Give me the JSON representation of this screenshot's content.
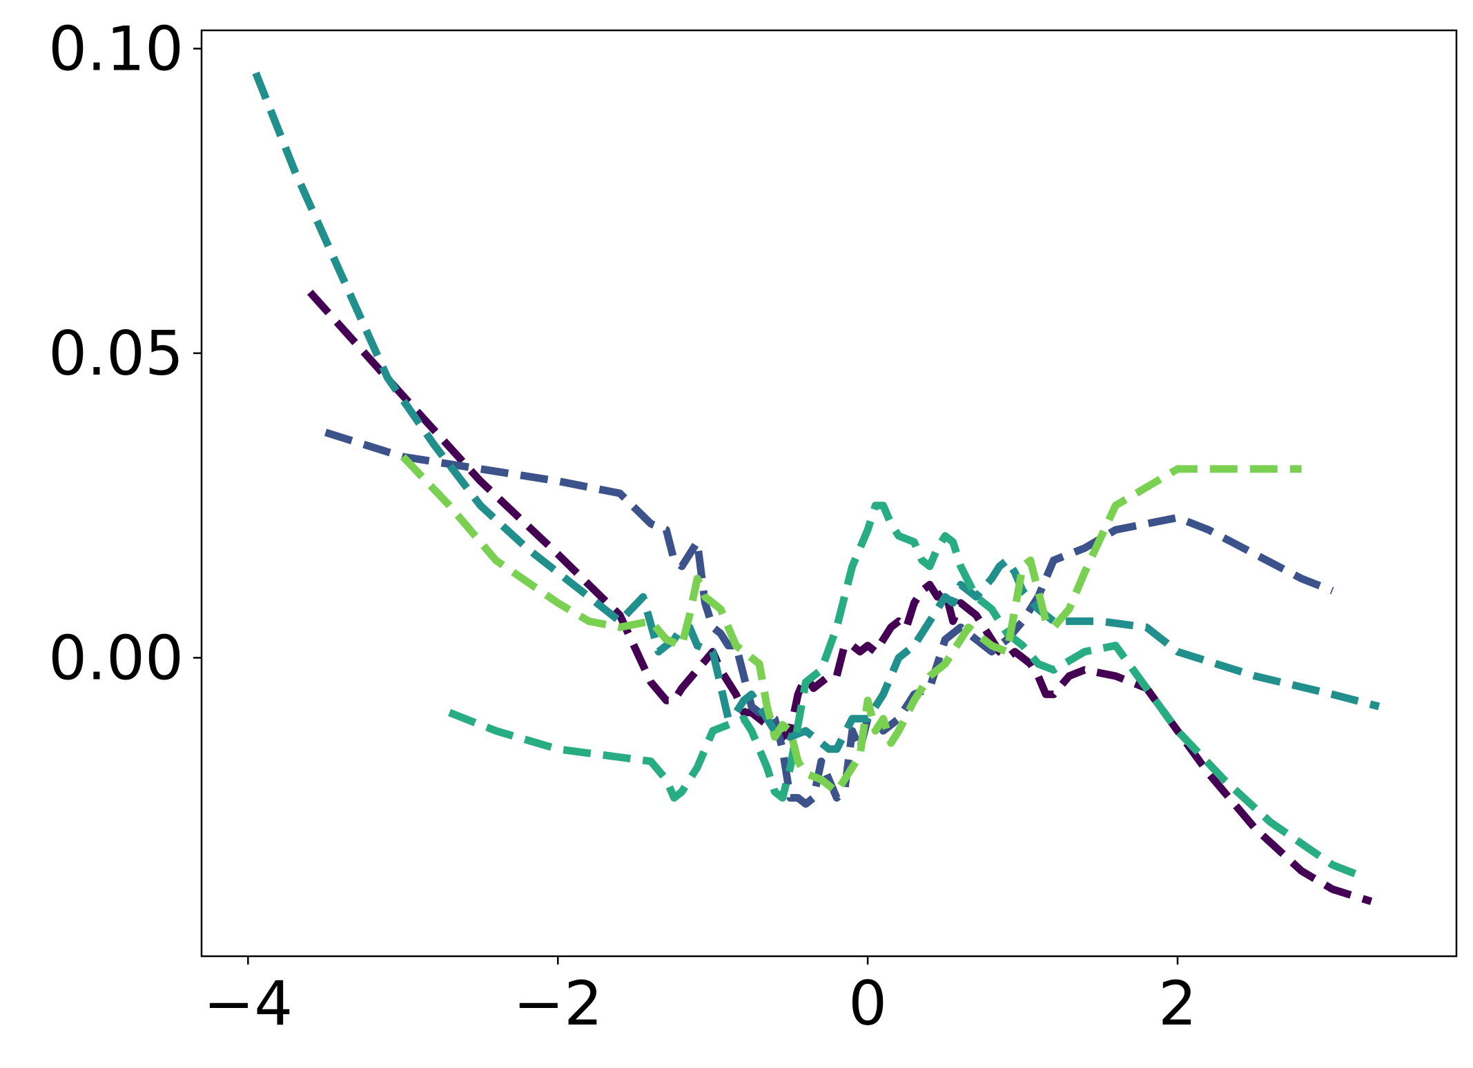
{
  "chart_data": {
    "type": "line",
    "title": "",
    "xlabel": "",
    "ylabel": "",
    "xlim": [
      -4.3,
      3.8
    ],
    "ylim": [
      -0.049,
      0.103
    ],
    "x_ticks": [
      -4,
      -2,
      0,
      2
    ],
    "y_ticks": [
      0.0,
      0.05,
      0.1
    ],
    "x_tick_labels": [
      "−4",
      "−2",
      "0",
      "2"
    ],
    "y_tick_labels": [
      "0.00",
      "0.05",
      "0.10"
    ],
    "grid": false,
    "legend": "none",
    "line_style": "dashed",
    "series": [
      {
        "color": "#440154",
        "x": [
          -3.6,
          -3.0,
          -2.5,
          -2.0,
          -1.6,
          -1.4,
          -1.3,
          -1.25,
          -1.2,
          -1.1,
          -1.0,
          -0.95,
          -0.9,
          -0.85,
          -0.8,
          -0.75,
          -0.7,
          -0.65,
          -0.6,
          -0.55,
          -0.5,
          -0.45,
          -0.4,
          -0.35,
          -0.3,
          -0.25,
          -0.2,
          -0.15,
          -0.1,
          -0.05,
          0.0,
          0.05,
          0.1,
          0.15,
          0.2,
          0.25,
          0.3,
          0.35,
          0.4,
          0.45,
          0.5,
          0.55,
          0.6,
          0.65,
          0.7,
          0.75,
          0.8,
          0.85,
          0.9,
          0.95,
          1.0,
          1.05,
          1.1,
          1.15,
          1.2,
          1.3,
          1.4,
          1.6,
          1.8,
          2.0,
          2.2,
          2.5,
          2.8,
          3.0,
          3.25
        ],
        "values": [
          0.06,
          0.043,
          0.029,
          0.017,
          0.007,
          -0.004,
          -0.007,
          -0.007,
          -0.005,
          -0.002,
          0.001,
          -0.002,
          -0.004,
          -0.006,
          -0.009,
          -0.009,
          -0.01,
          -0.011,
          -0.012,
          -0.013,
          -0.012,
          -0.006,
          -0.003,
          -0.005,
          -0.004,
          -0.003,
          -0.003,
          0.002,
          0.002,
          0.001,
          0.002,
          0.001,
          0.003,
          0.005,
          0.006,
          0.005,
          0.009,
          0.011,
          0.012,
          0.01,
          0.011,
          0.006,
          0.009,
          0.008,
          0.007,
          0.005,
          0.003,
          0.001,
          0.0,
          0.001,
          0.0,
          -0.001,
          -0.003,
          -0.006,
          -0.006,
          -0.003,
          -0.002,
          -0.003,
          -0.005,
          -0.012,
          -0.019,
          -0.028,
          -0.035,
          -0.038,
          -0.04
        ]
      },
      {
        "color": "#3b528b",
        "x": [
          -3.5,
          -3.0,
          -2.5,
          -2.0,
          -1.8,
          -1.6,
          -1.4,
          -1.3,
          -1.25,
          -1.2,
          -1.15,
          -1.1,
          -1.05,
          -1.0,
          -0.95,
          -0.9,
          -0.85,
          -0.8,
          -0.75,
          -0.7,
          -0.65,
          -0.6,
          -0.55,
          -0.5,
          -0.45,
          -0.4,
          -0.35,
          -0.3,
          -0.25,
          -0.2,
          -0.15,
          -0.1,
          -0.05,
          0.0,
          0.05,
          0.1,
          0.15,
          0.2,
          0.3,
          0.4,
          0.5,
          0.6,
          0.7,
          0.8,
          0.9,
          1.0,
          1.1,
          1.2,
          1.4,
          1.6,
          1.8,
          2.0,
          2.2,
          2.5,
          2.8,
          3.0
        ],
        "values": [
          0.037,
          0.033,
          0.031,
          0.029,
          0.028,
          0.027,
          0.022,
          0.021,
          0.016,
          0.015,
          0.017,
          0.019,
          0.009,
          0.005,
          0.004,
          0.002,
          0.002,
          -0.003,
          -0.008,
          -0.009,
          -0.009,
          -0.01,
          -0.015,
          -0.023,
          -0.023,
          -0.024,
          -0.023,
          -0.017,
          -0.02,
          -0.023,
          -0.022,
          -0.012,
          -0.015,
          -0.01,
          -0.01,
          -0.012,
          -0.011,
          -0.01,
          -0.006,
          -0.005,
          0.003,
          0.005,
          0.003,
          0.001,
          0.003,
          0.006,
          0.01,
          0.016,
          0.018,
          0.021,
          0.022,
          0.023,
          0.021,
          0.017,
          0.013,
          0.011
        ]
      },
      {
        "color": "#21908d",
        "x": [
          -3.95,
          -3.7,
          -3.4,
          -3.1,
          -2.8,
          -2.5,
          -2.2,
          -2.0,
          -1.8,
          -1.6,
          -1.45,
          -1.35,
          -1.3,
          -1.25,
          -1.2,
          -1.15,
          -1.1,
          -1.0,
          -0.9,
          -0.85,
          -0.8,
          -0.75,
          -0.7,
          -0.65,
          -0.6,
          -0.5,
          -0.4,
          -0.3,
          -0.25,
          -0.2,
          -0.1,
          0.0,
          0.1,
          0.2,
          0.3,
          0.4,
          0.5,
          0.55,
          0.6,
          0.7,
          0.8,
          0.85,
          0.9,
          0.95,
          1.0,
          1.1,
          1.2,
          1.3,
          1.5,
          1.8,
          2.0,
          2.5,
          3.0,
          3.3
        ],
        "values": [
          0.096,
          0.08,
          0.063,
          0.046,
          0.035,
          0.025,
          0.018,
          0.014,
          0.01,
          0.006,
          0.01,
          0.001,
          0.002,
          0.003,
          0.005,
          0.005,
          0.002,
          0.001,
          -0.01,
          -0.009,
          -0.007,
          -0.006,
          -0.008,
          -0.01,
          -0.012,
          -0.013,
          -0.012,
          -0.014,
          -0.015,
          -0.015,
          -0.01,
          -0.01,
          -0.006,
          0.0,
          0.002,
          0.006,
          0.01,
          0.009,
          0.012,
          0.01,
          0.013,
          0.015,
          0.016,
          0.014,
          0.011,
          0.008,
          0.006,
          0.006,
          0.006,
          0.005,
          0.001,
          -0.003,
          -0.006,
          -0.008
        ]
      },
      {
        "color": "#27ad81",
        "x": [
          -2.7,
          -2.4,
          -2.0,
          -1.7,
          -1.4,
          -1.3,
          -1.25,
          -1.2,
          -1.1,
          -1.0,
          -0.9,
          -0.8,
          -0.75,
          -0.7,
          -0.65,
          -0.6,
          -0.55,
          -0.5,
          -0.45,
          -0.4,
          -0.3,
          -0.2,
          -0.1,
          -0.05,
          0.0,
          0.05,
          0.1,
          0.15,
          0.2,
          0.3,
          0.35,
          0.4,
          0.45,
          0.5,
          0.55,
          0.6,
          0.7,
          0.8,
          0.9,
          1.0,
          1.1,
          1.2,
          1.4,
          1.6,
          1.8,
          2.0,
          2.3,
          2.6,
          3.0,
          3.2
        ],
        "values": [
          -0.009,
          -0.012,
          -0.015,
          -0.016,
          -0.017,
          -0.02,
          -0.023,
          -0.022,
          -0.018,
          -0.012,
          -0.011,
          -0.01,
          -0.012,
          -0.015,
          -0.018,
          -0.022,
          -0.023,
          -0.018,
          -0.011,
          -0.004,
          -0.002,
          0.005,
          0.015,
          0.018,
          0.021,
          0.025,
          0.025,
          0.022,
          0.02,
          0.019,
          0.016,
          0.015,
          0.018,
          0.02,
          0.019,
          0.015,
          0.01,
          0.008,
          0.004,
          0.002,
          -0.001,
          -0.002,
          0.001,
          0.002,
          -0.005,
          -0.012,
          -0.02,
          -0.027,
          -0.034,
          -0.036
        ]
      },
      {
        "color": "#7ad151",
        "x": [
          -3.0,
          -2.7,
          -2.4,
          -2.0,
          -1.8,
          -1.6,
          -1.4,
          -1.3,
          -1.2,
          -1.15,
          -1.1,
          -1.05,
          -1.0,
          -0.95,
          -0.9,
          -0.85,
          -0.8,
          -0.7,
          -0.65,
          -0.6,
          -0.55,
          -0.5,
          -0.45,
          -0.4,
          -0.3,
          -0.2,
          -0.1,
          -0.05,
          0.0,
          0.05,
          0.1,
          0.15,
          0.2,
          0.3,
          0.4,
          0.5,
          0.6,
          0.65,
          0.7,
          0.8,
          0.9,
          1.0,
          1.05,
          1.1,
          1.15,
          1.2,
          1.3,
          1.4,
          1.6,
          1.8,
          2.0,
          2.4,
          2.8
        ],
        "values": [
          0.033,
          0.025,
          0.016,
          0.009,
          0.006,
          0.005,
          0.006,
          0.003,
          0.002,
          0.007,
          0.013,
          0.01,
          0.009,
          0.008,
          0.005,
          0.002,
          0.001,
          -0.001,
          -0.008,
          -0.013,
          -0.011,
          -0.012,
          -0.017,
          -0.019,
          -0.02,
          -0.022,
          -0.018,
          -0.016,
          -0.007,
          -0.012,
          -0.01,
          -0.014,
          -0.012,
          -0.007,
          -0.003,
          -0.001,
          0.003,
          0.005,
          0.004,
          0.002,
          0.001,
          0.015,
          0.016,
          0.011,
          0.006,
          0.005,
          0.008,
          0.014,
          0.025,
          0.028,
          0.031,
          0.031,
          0.031
        ]
      }
    ]
  }
}
